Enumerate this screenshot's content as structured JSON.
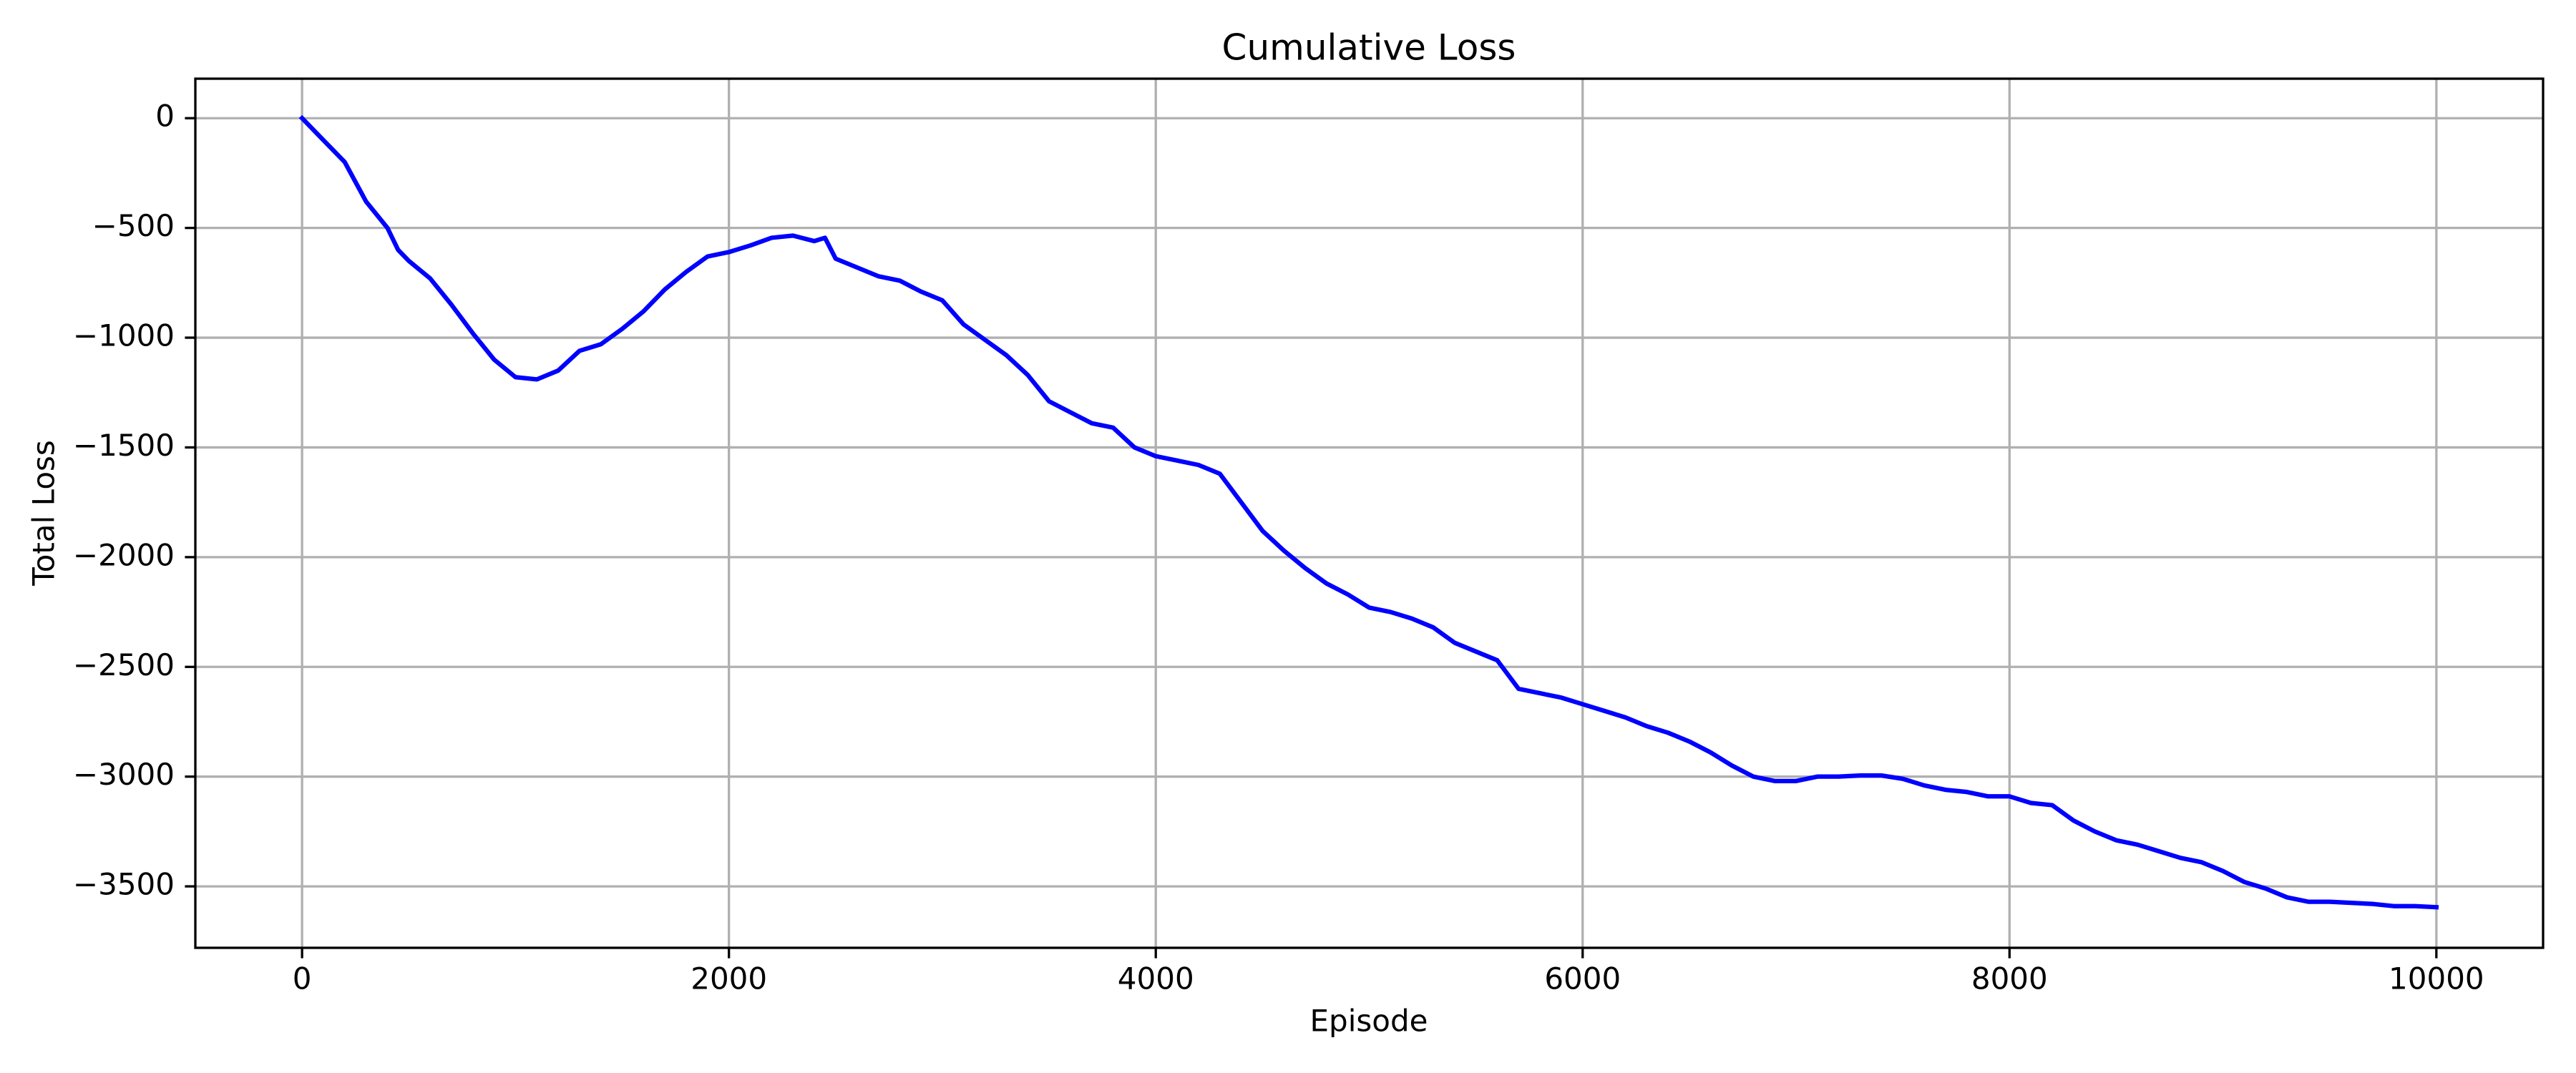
{
  "chart_data": {
    "type": "line",
    "title": "Cumulative Loss",
    "x_label": "Episode",
    "y_label": "Total Loss",
    "xlim": [
      -500,
      10500
    ],
    "xticks": [
      0,
      2000,
      4000,
      6000,
      8000,
      10000
    ],
    "ylim": [
      -3780,
      180
    ],
    "yticks": [
      {
        "value": -3500,
        "label": "−3500"
      },
      {
        "value": -3000,
        "label": "−3000"
      },
      {
        "value": -2500,
        "label": "−2500"
      },
      {
        "value": -2000,
        "label": "−2000"
      },
      {
        "value": -1500,
        "label": "−1500"
      },
      {
        "value": -1000,
        "label": "−1000"
      },
      {
        "value": -500,
        "label": "−500"
      },
      0
    ],
    "grid": true,
    "x": [
      0,
      100,
      200,
      300,
      400,
      450,
      500,
      600,
      700,
      800,
      900,
      1000,
      1100,
      1200,
      1300,
      1400,
      1500,
      1600,
      1700,
      1800,
      1900,
      2000,
      2100,
      2200,
      2300,
      2400,
      2450,
      2500,
      2600,
      2700,
      2800,
      2900,
      3000,
      3100,
      3200,
      3300,
      3400,
      3500,
      3600,
      3700,
      3800,
      3900,
      4000,
      4100,
      4200,
      4300,
      4400,
      4500,
      4600,
      4700,
      4800,
      4900,
      5000,
      5100,
      5200,
      5300,
      5400,
      5500,
      5600,
      5700,
      5800,
      5900,
      6000,
      6100,
      6200,
      6300,
      6400,
      6500,
      6600,
      6700,
      6800,
      6900,
      7000,
      7100,
      7200,
      7300,
      7400,
      7500,
      7600,
      7700,
      7800,
      7900,
      8000,
      8100,
      8200,
      8300,
      8400,
      8500,
      8600,
      8700,
      8800,
      8900,
      9000,
      9100,
      9200,
      9300,
      9400,
      9500,
      9600,
      9700,
      9800,
      9900,
      10000
    ],
    "series": [
      {
        "color": "#0000ff",
        "values": [
          0,
          -100,
          -200,
          -380,
          -500,
          -600,
          -650,
          -730,
          -850,
          -980,
          -1100,
          -1180,
          -1190,
          -1150,
          -1060,
          -1030,
          -960,
          -880,
          -780,
          -700,
          -630,
          -610,
          -580,
          -545,
          -535,
          -560,
          -545,
          -640,
          -680,
          -720,
          -740,
          -790,
          -830,
          -940,
          -1010,
          -1080,
          -1170,
          -1290,
          -1340,
          -1390,
          -1410,
          -1500,
          -1540,
          -1560,
          -1580,
          -1620,
          -1750,
          -1880,
          -1970,
          -2050,
          -2120,
          -2170,
          -2230,
          -2250,
          -2280,
          -2320,
          -2390,
          -2430,
          -2470,
          -2600,
          -2620,
          -2640,
          -2670,
          -2700,
          -2730,
          -2770,
          -2800,
          -2840,
          -2890,
          -2950,
          -3000,
          -3020,
          -3020,
          -3000,
          -3000,
          -2995,
          -2995,
          -3010,
          -3040,
          -3060,
          -3070,
          -3090,
          -3090,
          -3120,
          -3130,
          -3200,
          -3250,
          -3290,
          -3310,
          -3340,
          -3370,
          -3390,
          -3430,
          -3480,
          -3510,
          -3550,
          -3570,
          -3570,
          -3575,
          -3580,
          -3590,
          -3590,
          -3595
        ]
      }
    ]
  }
}
